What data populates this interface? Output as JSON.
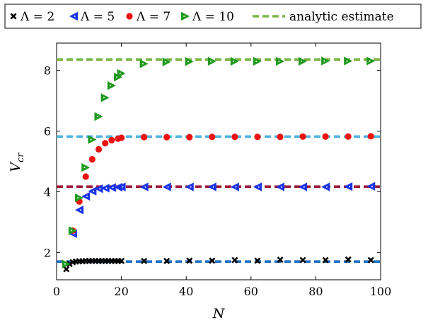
{
  "chart_data": {
    "type": "scatter",
    "title": "",
    "xlabel": "N",
    "ylabel_main": "V",
    "ylabel_sub": "cr",
    "xlim": [
      0,
      100
    ],
    "ylim": [
      1.1,
      8.9
    ],
    "xticks": [
      0,
      20,
      40,
      60,
      80,
      100
    ],
    "yticks": [
      2,
      4,
      6,
      8
    ],
    "xtick_labels": [
      "0",
      "20",
      "40",
      "60",
      "80",
      "100"
    ],
    "ytick_labels": [
      "2",
      "4",
      "6",
      "8"
    ],
    "grid": false,
    "legend_placement": "top",
    "series": [
      {
        "name": "Λ = 2",
        "marker": "cross",
        "color": "#000000",
        "x": [
          3,
          4,
          5,
          6,
          7,
          8,
          9,
          10,
          11,
          12,
          13,
          14,
          15,
          16,
          17,
          18,
          19,
          20,
          27,
          34,
          41,
          48,
          55,
          62,
          69,
          76,
          83,
          90,
          97
        ],
        "y": [
          1.45,
          1.62,
          1.68,
          1.7,
          1.71,
          1.71,
          1.72,
          1.72,
          1.72,
          1.72,
          1.72,
          1.72,
          1.72,
          1.72,
          1.72,
          1.72,
          1.72,
          1.72,
          1.72,
          1.72,
          1.73,
          1.73,
          1.75,
          1.73,
          1.76,
          1.75,
          1.75,
          1.77,
          1.75
        ]
      },
      {
        "name": "Λ = 5",
        "marker": "triangle-left",
        "color": "#1a33e6",
        "x": [
          5,
          7,
          9,
          11,
          13,
          15,
          17,
          19,
          20,
          27,
          34,
          41,
          48,
          55,
          62,
          69,
          76,
          83,
          90,
          97
        ],
        "y": [
          2.62,
          3.4,
          3.85,
          4.02,
          4.1,
          4.12,
          4.14,
          4.15,
          4.16,
          4.16,
          4.16,
          4.16,
          4.16,
          4.16,
          4.16,
          4.16,
          4.16,
          4.16,
          4.17,
          4.18
        ]
      },
      {
        "name": "Λ = 7",
        "marker": "circle",
        "color": "#ee1111",
        "x": [
          5,
          7,
          9,
          11,
          13,
          15,
          17,
          19,
          20,
          27,
          34,
          41,
          48,
          55,
          62,
          69,
          76,
          83,
          90,
          97
        ],
        "y": [
          2.72,
          3.68,
          4.5,
          5.07,
          5.4,
          5.6,
          5.7,
          5.75,
          5.78,
          5.8,
          5.8,
          5.8,
          5.81,
          5.81,
          5.81,
          5.81,
          5.82,
          5.82,
          5.82,
          5.83
        ]
      },
      {
        "name": "Λ = 10",
        "marker": "triangle-right",
        "color": "#1f9a1f",
        "x": [
          3,
          5,
          7,
          9,
          11,
          13,
          15,
          17,
          19,
          20,
          27,
          34,
          41,
          48,
          55,
          62,
          69,
          76,
          83,
          90,
          97
        ],
        "y": [
          1.62,
          2.72,
          3.8,
          4.8,
          5.72,
          6.48,
          7.1,
          7.5,
          7.78,
          7.9,
          8.22,
          8.28,
          8.29,
          8.3,
          8.3,
          8.3,
          8.3,
          8.3,
          8.31,
          8.31,
          8.31
        ]
      },
      {
        "name": "analytic estimate",
        "marker": "none",
        "line": "dashed",
        "color": "#7ab648",
        "hlines": [
          {
            "y": 1.7,
            "color": "#1f6fbf"
          },
          {
            "y": 4.17,
            "color": "#a01c3c"
          },
          {
            "y": 5.82,
            "color": "#4fb3e0"
          },
          {
            "y": 8.36,
            "color": "#7ab648"
          }
        ]
      }
    ]
  }
}
